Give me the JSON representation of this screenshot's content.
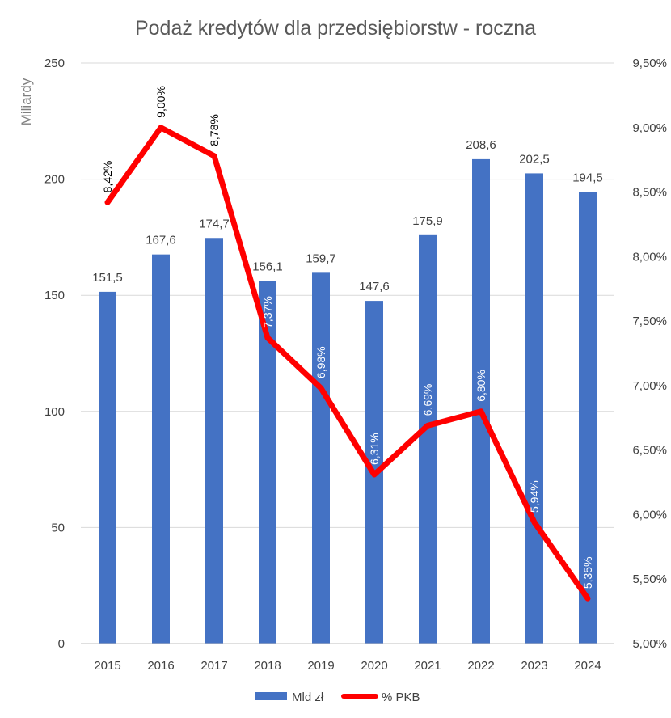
{
  "chart_data": {
    "type": "bar+line",
    "title": "Podaż kredytów dla przedsiębiorstw - roczna",
    "ylabel": "Miliardy",
    "categories": [
      "2015",
      "2016",
      "2017",
      "2018",
      "2019",
      "2020",
      "2021",
      "2022",
      "2023",
      "2024"
    ],
    "ylim": [
      0,
      250
    ],
    "y_ticks": [
      "0",
      "50",
      "100",
      "150",
      "200",
      "250"
    ],
    "y2lim": [
      5.0,
      9.5
    ],
    "y2_ticks": [
      "5,00%",
      "5,50%",
      "6,00%",
      "6,50%",
      "7,00%",
      "7,50%",
      "8,00%",
      "8,50%",
      "9,00%",
      "9,50%"
    ],
    "series": [
      {
        "name": "Mld zł",
        "kind": "bar",
        "color": "#4472c4",
        "values": [
          151.5,
          167.6,
          174.7,
          156.1,
          159.7,
          147.6,
          175.9,
          208.6,
          202.5,
          194.5
        ],
        "labels": [
          "151,5",
          "167,6",
          "174,7",
          "156,1",
          "159,7",
          "147,6",
          "175,9",
          "208,6",
          "202,5",
          "194,5"
        ]
      },
      {
        "name": "% PKB",
        "kind": "line",
        "axis": "secondary",
        "color": "#ff0000",
        "values": [
          8.42,
          9.0,
          8.78,
          7.37,
          6.98,
          6.31,
          6.69,
          6.8,
          5.94,
          5.35
        ],
        "labels": [
          "8,42%",
          "9,00%",
          "8,78%",
          "7,37%",
          "6,98%",
          "6,31%",
          "6,69%",
          "6,80%",
          "5,94%",
          "5,35%"
        ]
      }
    ],
    "grid": true,
    "legend": "bottom"
  }
}
